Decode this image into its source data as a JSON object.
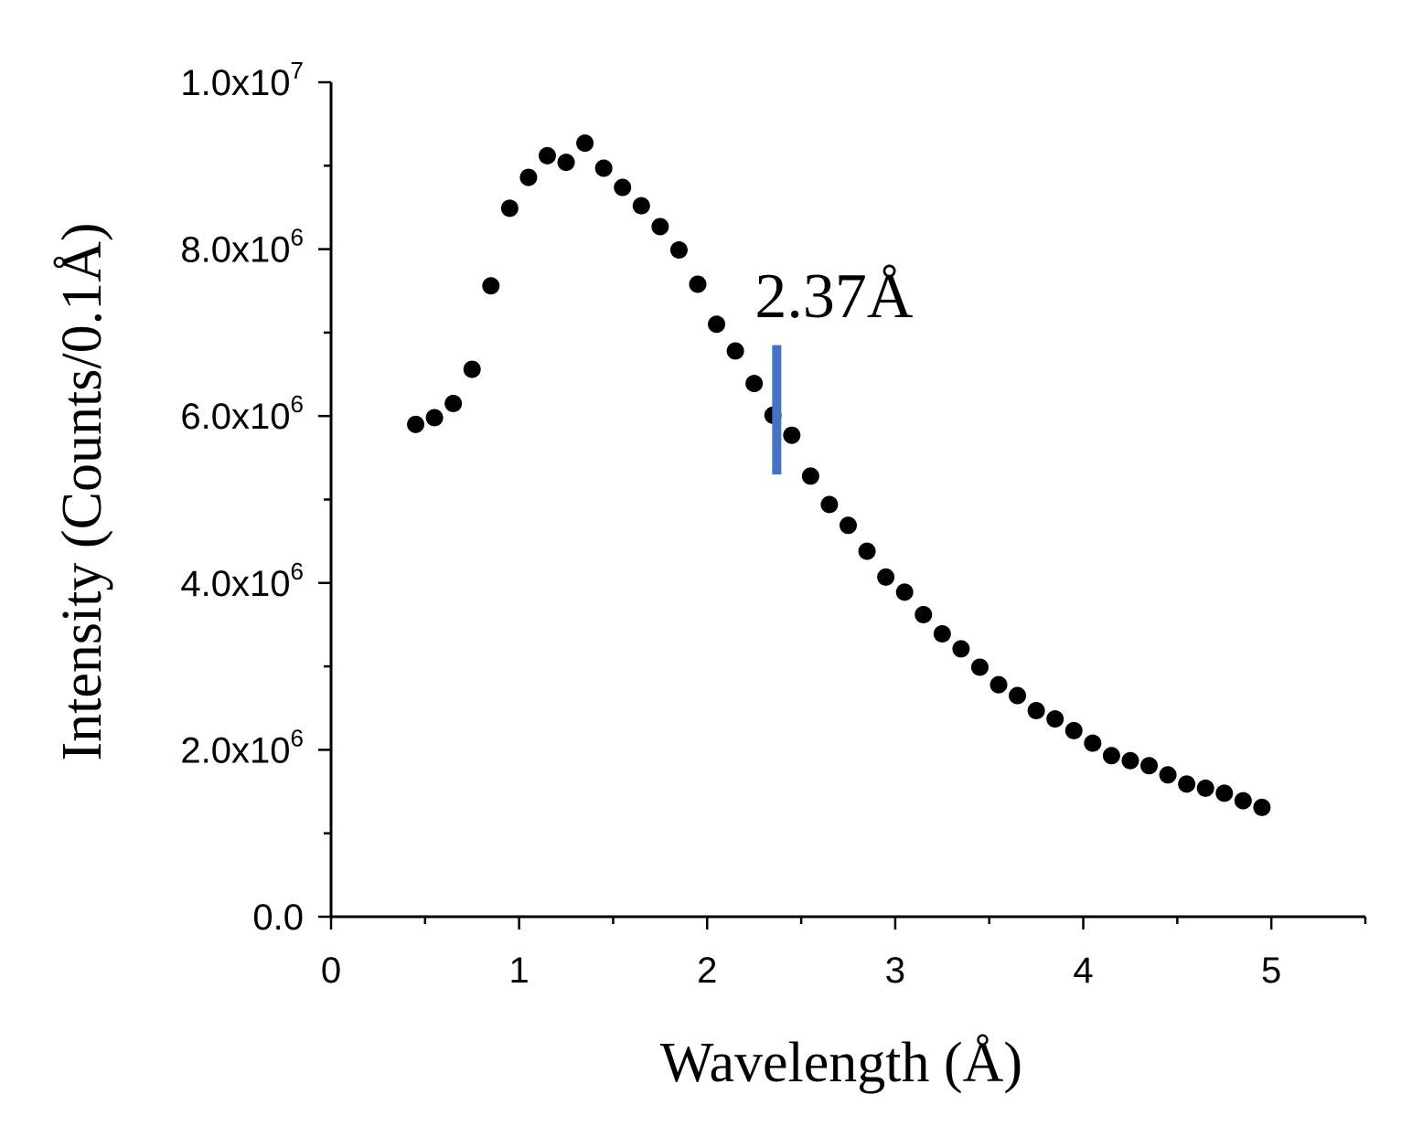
{
  "chart_data": {
    "type": "scatter",
    "title": "",
    "xlabel": "Wavelength (Å)",
    "ylabel": "Intensity (Counts/0.1Å)",
    "xlim": [
      0,
      5.5
    ],
    "ylim": [
      0,
      10000000
    ],
    "x_ticks": [
      {
        "value": 0,
        "label": "0"
      },
      {
        "value": 1,
        "label": "1"
      },
      {
        "value": 2,
        "label": "2"
      },
      {
        "value": 3,
        "label": "3"
      },
      {
        "value": 4,
        "label": "4"
      },
      {
        "value": 5,
        "label": "5"
      }
    ],
    "x_minor_ticks": [
      0.5,
      1.5,
      2.5,
      3.5,
      4.5,
      5.5
    ],
    "y_ticks": [
      {
        "value": 0,
        "mantissa": "0.0",
        "exponent": ""
      },
      {
        "value": 2000000,
        "mantissa": "2.0x10",
        "exponent": "6"
      },
      {
        "value": 4000000,
        "mantissa": "4.0x10",
        "exponent": "6"
      },
      {
        "value": 6000000,
        "mantissa": "6.0x10",
        "exponent": "6"
      },
      {
        "value": 8000000,
        "mantissa": "8.0x10",
        "exponent": "6"
      },
      {
        "value": 10000000,
        "mantissa": "1.0x10",
        "exponent": "7"
      }
    ],
    "y_minor_ticks": [
      1000000,
      3000000,
      5000000,
      7000000,
      9000000
    ],
    "grid": false,
    "marker_color": "#000000",
    "series": [
      {
        "name": "Intensity",
        "x": [
          0.45,
          0.55,
          0.65,
          0.75,
          0.85,
          0.95,
          1.05,
          1.15,
          1.25,
          1.35,
          1.45,
          1.55,
          1.65,
          1.75,
          1.85,
          1.95,
          2.05,
          2.15,
          2.25,
          2.35,
          2.45,
          2.55,
          2.65,
          2.75,
          2.85,
          2.95,
          3.05,
          3.15,
          3.25,
          3.35,
          3.45,
          3.55,
          3.65,
          3.75,
          3.85,
          3.95,
          4.05,
          4.15,
          4.25,
          4.35,
          4.45,
          4.55,
          4.65,
          4.75,
          4.85,
          4.95
        ],
        "y": [
          5900000,
          5980000,
          6150000,
          6560000,
          7560000,
          8490000,
          8860000,
          9120000,
          9040000,
          9270000,
          8970000,
          8740000,
          8520000,
          8270000,
          7990000,
          7580000,
          7100000,
          6780000,
          6390000,
          6010000,
          5770000,
          5280000,
          4940000,
          4690000,
          4380000,
          4070000,
          3890000,
          3620000,
          3390000,
          3210000,
          2990000,
          2780000,
          2650000,
          2470000,
          2370000,
          2230000,
          2080000,
          1930000,
          1870000,
          1810000,
          1700000,
          1590000,
          1540000,
          1480000,
          1390000,
          1310000
        ]
      }
    ],
    "annotations": [
      {
        "text": "2.37Å",
        "x": 2.37,
        "marker_from": 5300000,
        "marker_to": 6850000,
        "color": "#4472C4"
      }
    ]
  }
}
